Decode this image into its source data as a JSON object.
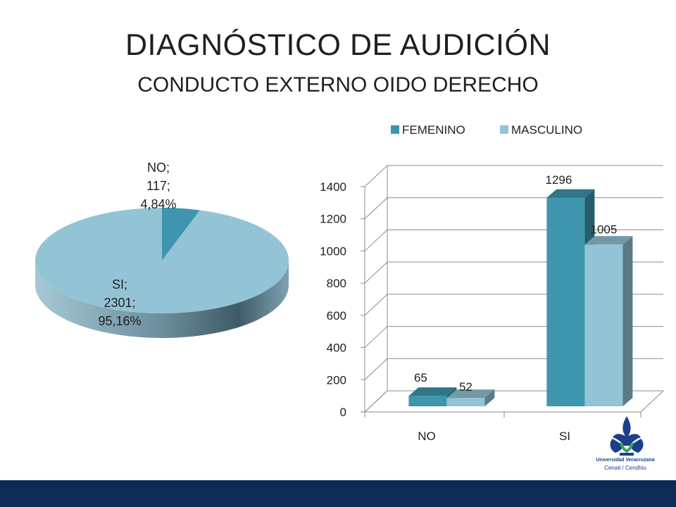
{
  "slide": {
    "title": "DIAGNÓSTICO DE AUDICIÓN",
    "subtitle": "CONDUCTO EXTERNO OIDO DERECHO"
  },
  "logo": {
    "line1": "Universidad Veracruzana",
    "line2": "Cenati / Cendhiu"
  },
  "colors": {
    "femenino": "#3d96ae",
    "masculino": "#93c4d6",
    "footer": "#0e2a57"
  },
  "chart_data": [
    {
      "type": "pie",
      "style": "3d",
      "slices": [
        {
          "category": "NO",
          "value": 117,
          "percent": 4.84,
          "label_lines": [
            "NO;",
            "117;",
            "4,84%"
          ],
          "color": "#3d96ae"
        },
        {
          "category": "SI",
          "value": 2301,
          "percent": 95.16,
          "label_lines": [
            "SI;",
            "2301;",
            "95,16%"
          ],
          "color": "#93c4d6"
        }
      ]
    },
    {
      "type": "bar",
      "style": "3d-clustered",
      "categories": [
        "NO",
        "SI"
      ],
      "series": [
        {
          "name": "FEMENINO",
          "values": [
            65,
            1296
          ],
          "labels": [
            "65",
            "1296"
          ],
          "color": "#3d96ae"
        },
        {
          "name": "MASCULINO",
          "values": [
            52,
            1005
          ],
          "labels": [
            "52",
            "1005"
          ],
          "color": "#93c4d6"
        }
      ],
      "ylim": [
        0,
        1400
      ],
      "yticks": [
        "0",
        "200",
        "400",
        "600",
        "800",
        "1000",
        "1200",
        "1400"
      ],
      "grid": true,
      "legend": "top"
    }
  ]
}
